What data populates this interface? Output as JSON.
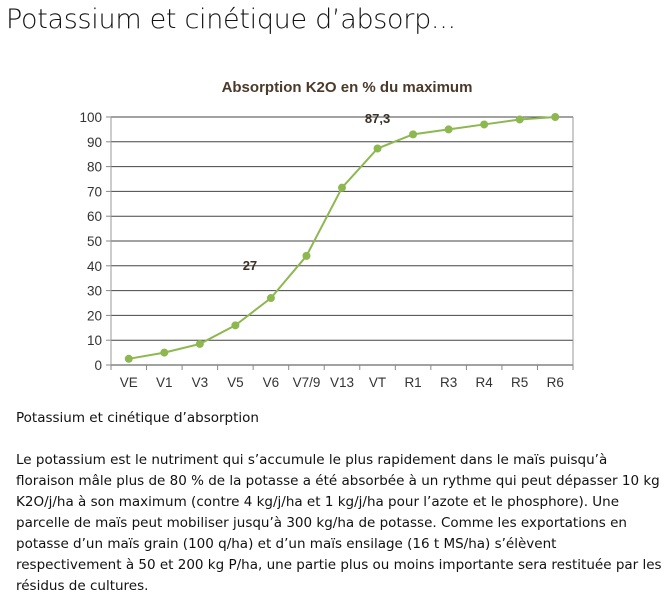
{
  "page": {
    "title": "Potassium et cinétique d’absorp...",
    "caption": "Potassium et cinétique d’absorption",
    "body": "Le potassium est le nutriment qui s’accumule le plus rapidement dans le maïs puisqu’à floraison mâle plus de 80 % de la potasse a été absorbée à un rythme qui peut dépasser 10 kg K2O/j/ha à son maximum (contre 4 kg/j/ha et 1 kg/j/ha pour l’azote et le phosphore). Une parcelle de maïs peut mobiliser jusqu’à 300 kg/ha de potasse. Comme les exportations en potasse d’un maïs grain (100 q/ha) et d’un maïs ensilage (16 t MS/ha) s’élèvent respectivement à 50 et 200 kg P/ha, une partie plus ou moins importante sera restituée par les résidus de cultures."
  },
  "chart_data": {
    "type": "line",
    "title": "Absorption K2O en % du maximum",
    "categories": [
      "VE",
      "V1",
      "V3",
      "V5",
      "V6",
      "V7/9",
      "V13",
      "VT",
      "R1",
      "R3",
      "R4",
      "R5",
      "R6"
    ],
    "values": [
      2.5,
      5,
      8.5,
      16,
      27,
      44,
      71.5,
      87.3,
      93,
      95,
      97,
      99,
      100
    ],
    "ylim": [
      0,
      100
    ],
    "yticks": [
      0,
      10,
      20,
      30,
      40,
      50,
      60,
      70,
      80,
      90,
      100
    ],
    "grid": true,
    "annotations": [
      {
        "text": "87,3",
        "category": "VT"
      },
      {
        "text": "27",
        "category": "V6"
      }
    ],
    "colors": {
      "line": "#8db850",
      "title": "#4a3a2a",
      "grid": "#444444"
    }
  }
}
